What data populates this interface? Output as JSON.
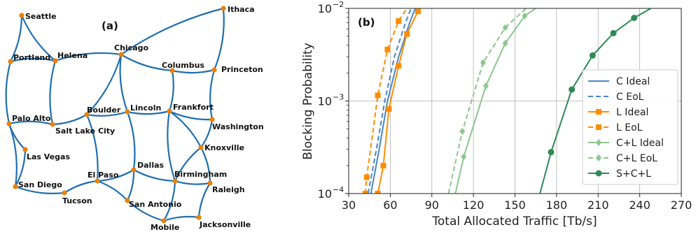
{
  "colors": {
    "link": "#1f6fb0",
    "node": "#e8820c",
    "grid": "#b0b0b0",
    "C": "#4a86c5",
    "L": "#ff8c00",
    "CL": "#8fc58f",
    "SCL": "#2e8b57"
  },
  "network": {
    "panel_label": "(a)",
    "cities": [
      {
        "id": "seattle",
        "name": "Seattle"
      },
      {
        "id": "portland",
        "name": "Portland"
      },
      {
        "id": "helena",
        "name": "Helena"
      },
      {
        "id": "chicago",
        "name": "Chicago"
      },
      {
        "id": "ithaca",
        "name": "Ithaca"
      },
      {
        "id": "columbus",
        "name": "Columbus"
      },
      {
        "id": "princeton",
        "name": "Princeton"
      },
      {
        "id": "palo_alto",
        "name": "Palo Alto"
      },
      {
        "id": "salt_lake",
        "name": "Salt Lake City"
      },
      {
        "id": "boulder",
        "name": "Boulder"
      },
      {
        "id": "lincoln",
        "name": "Lincoln"
      },
      {
        "id": "frankfort",
        "name": "Frankfort"
      },
      {
        "id": "washington",
        "name": "Washington"
      },
      {
        "id": "las_vegas",
        "name": "Las Vegas"
      },
      {
        "id": "knoxville",
        "name": "Knoxville"
      },
      {
        "id": "el_paso",
        "name": "El Paso"
      },
      {
        "id": "dallas",
        "name": "Dallas"
      },
      {
        "id": "birmingham",
        "name": "Birmingham"
      },
      {
        "id": "san_diego",
        "name": "San Diego"
      },
      {
        "id": "raleigh",
        "name": "Raleigh"
      },
      {
        "id": "tucson",
        "name": "Tucson"
      },
      {
        "id": "san_antonio",
        "name": "San Antonio"
      },
      {
        "id": "mobile",
        "name": "Mobile"
      },
      {
        "id": "jacksonville",
        "name": "Jacksonville"
      }
    ],
    "links": [
      [
        "seattle",
        "portland"
      ],
      [
        "seattle",
        "helena"
      ],
      [
        "portland",
        "helena"
      ],
      [
        "portland",
        "palo_alto"
      ],
      [
        "helena",
        "chicago"
      ],
      [
        "helena",
        "salt_lake"
      ],
      [
        "chicago",
        "ithaca"
      ],
      [
        "chicago",
        "columbus"
      ],
      [
        "chicago",
        "boulder"
      ],
      [
        "chicago",
        "lincoln"
      ],
      [
        "ithaca",
        "princeton"
      ],
      [
        "columbus",
        "princeton"
      ],
      [
        "columbus",
        "frankfort"
      ],
      [
        "princeton",
        "washington"
      ],
      [
        "palo_alto",
        "salt_lake"
      ],
      [
        "palo_alto",
        "las_vegas"
      ],
      [
        "palo_alto",
        "san_diego"
      ],
      [
        "salt_lake",
        "boulder"
      ],
      [
        "las_vegas",
        "san_diego"
      ],
      [
        "san_diego",
        "tucson"
      ],
      [
        "tucson",
        "el_paso"
      ],
      [
        "boulder",
        "lincoln"
      ],
      [
        "boulder",
        "el_paso"
      ],
      [
        "lincoln",
        "frankfort"
      ],
      [
        "lincoln",
        "dallas"
      ],
      [
        "frankfort",
        "washington"
      ],
      [
        "frankfort",
        "knoxville"
      ],
      [
        "frankfort",
        "birmingham"
      ],
      [
        "washington",
        "knoxville"
      ],
      [
        "knoxville",
        "birmingham"
      ],
      [
        "knoxville",
        "raleigh"
      ],
      [
        "el_paso",
        "dallas"
      ],
      [
        "el_paso",
        "san_antonio"
      ],
      [
        "dallas",
        "birmingham"
      ],
      [
        "dallas",
        "san_antonio"
      ],
      [
        "birmingham",
        "raleigh"
      ],
      [
        "birmingham",
        "mobile"
      ],
      [
        "san_antonio",
        "mobile"
      ],
      [
        "mobile",
        "jacksonville"
      ],
      [
        "raleigh",
        "jacksonville"
      ]
    ]
  },
  "chart_data": {
    "type": "line",
    "panel_label": "(b)",
    "xlabel": "Total Allocated Traffic [Tb/s]",
    "ylabel": "Blocking Probability",
    "xlim": [
      30,
      270
    ],
    "ylim": [
      0.0001,
      0.01
    ],
    "yscale": "log",
    "grid": true,
    "legend_position": "right",
    "xticks": [
      {
        "value": 30,
        "label": "30"
      },
      {
        "value": 60,
        "label": "60"
      },
      {
        "value": 90,
        "label": "90"
      },
      {
        "value": 120,
        "label": "120"
      },
      {
        "value": 150,
        "label": "150"
      },
      {
        "value": 180,
        "label": "180"
      },
      {
        "value": 210,
        "label": "210"
      },
      {
        "value": 240,
        "label": "240"
      },
      {
        "value": 270,
        "label": "270"
      }
    ],
    "yticks": [
      {
        "value": 0.0001,
        "base": "10",
        "exp": "−4"
      },
      {
        "value": 0.001,
        "base": "10",
        "exp": "−3"
      },
      {
        "value": 0.01,
        "base": "10",
        "exp": "−2"
      }
    ],
    "series": [
      {
        "name": "C Ideal",
        "color": "#4a86c5",
        "dash": false,
        "marker": "none",
        "points": [
          [
            46,
            0.0001
          ],
          [
            52,
            0.0003
          ],
          [
            58,
            0.001
          ],
          [
            66,
            0.003
          ],
          [
            74,
            0.007
          ],
          [
            78,
            0.01
          ]
        ]
      },
      {
        "name": "C EoL",
        "color": "#4a86c5",
        "dash": true,
        "marker": "none",
        "points": [
          [
            44,
            0.0001
          ],
          [
            50,
            0.0003
          ],
          [
            56,
            0.001
          ],
          [
            63,
            0.003
          ],
          [
            71,
            0.007
          ],
          [
            75,
            0.01
          ]
        ]
      },
      {
        "name": "L Ideal",
        "color": "#ff8c00",
        "dash": false,
        "marker": "square",
        "points": [
          [
            51,
            0.0001
          ],
          [
            55,
            0.0002
          ],
          [
            59,
            0.00082
          ],
          [
            66,
            0.0024
          ],
          [
            72,
            0.0053
          ],
          [
            80,
            0.0093
          ],
          [
            82,
            0.01
          ]
        ]
      },
      {
        "name": "L EoL",
        "color": "#ff8c00",
        "dash": true,
        "marker": "square",
        "points": [
          [
            42,
            0.0001
          ],
          [
            43,
            0.00015
          ],
          [
            51,
            0.00115
          ],
          [
            58,
            0.0036
          ],
          [
            66,
            0.0073
          ],
          [
            72,
            0.01
          ]
        ]
      },
      {
        "name": "C+L Ideal",
        "color": "#8fc58f",
        "dash": false,
        "marker": "diamond",
        "points": [
          [
            107,
            0.0001
          ],
          [
            113,
            0.00025
          ],
          [
            129,
            0.00145
          ],
          [
            143,
            0.0042
          ],
          [
            157,
            0.0083
          ],
          [
            165,
            0.01
          ]
        ]
      },
      {
        "name": "C+L EoL",
        "color": "#8fc58f",
        "dash": true,
        "marker": "diamond",
        "points": [
          [
            102,
            0.0001
          ],
          [
            112,
            0.00047
          ],
          [
            127,
            0.0026
          ],
          [
            143,
            0.0062
          ],
          [
            158,
            0.01
          ]
        ]
      },
      {
        "name": "S+C+L",
        "color": "#2e8b57",
        "dash": false,
        "marker": "circle",
        "points": [
          [
            168,
            0.0001
          ],
          [
            176,
            0.00028
          ],
          [
            191,
            0.00133
          ],
          [
            206,
            0.0031
          ],
          [
            221,
            0.0054
          ],
          [
            236,
            0.0079
          ],
          [
            248,
            0.01
          ]
        ]
      }
    ]
  }
}
